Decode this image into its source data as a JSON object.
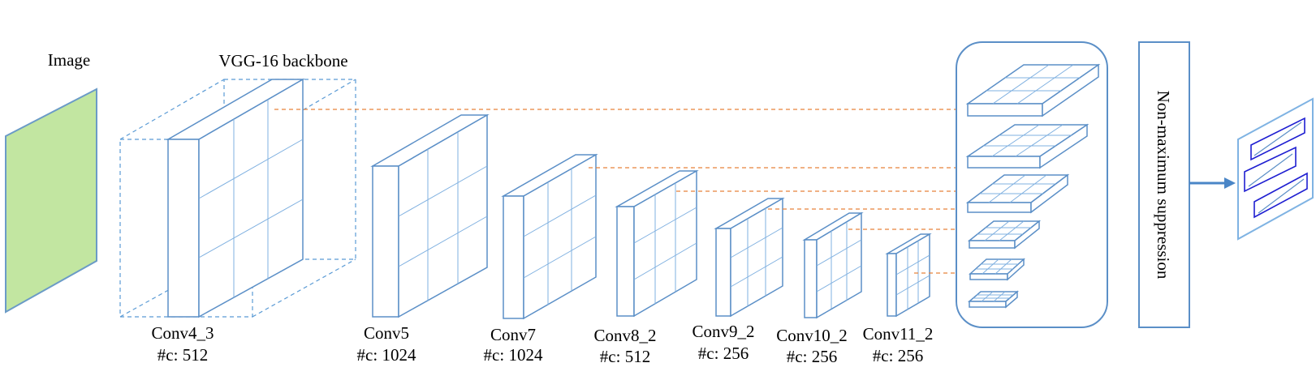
{
  "labels": {
    "image": "Image",
    "backbone": "VGG-16 backbone",
    "nms": "Non-maximum suppression"
  },
  "layers": [
    {
      "name": "Conv4_3",
      "channels": "#c: 512"
    },
    {
      "name": "Conv5",
      "channels": "#c: 1024"
    },
    {
      "name": "Conv7",
      "channels": "#c: 1024"
    },
    {
      "name": "Conv8_2",
      "channels": "#c: 512"
    },
    {
      "name": "Conv9_2",
      "channels": "#c: 256"
    },
    {
      "name": "Conv10_2",
      "channels": "#c: 256"
    },
    {
      "name": "Conv11_2",
      "channels": "#c: 256"
    }
  ],
  "colors": {
    "image_fill": "#c2e6a1",
    "image_stroke": "#6b9bc7",
    "block_stroke": "#5b8fc7",
    "grid": "#7fb0e0",
    "link": "#e8823a",
    "box": "#1f1fd1",
    "arrow": "#4a86c7"
  }
}
